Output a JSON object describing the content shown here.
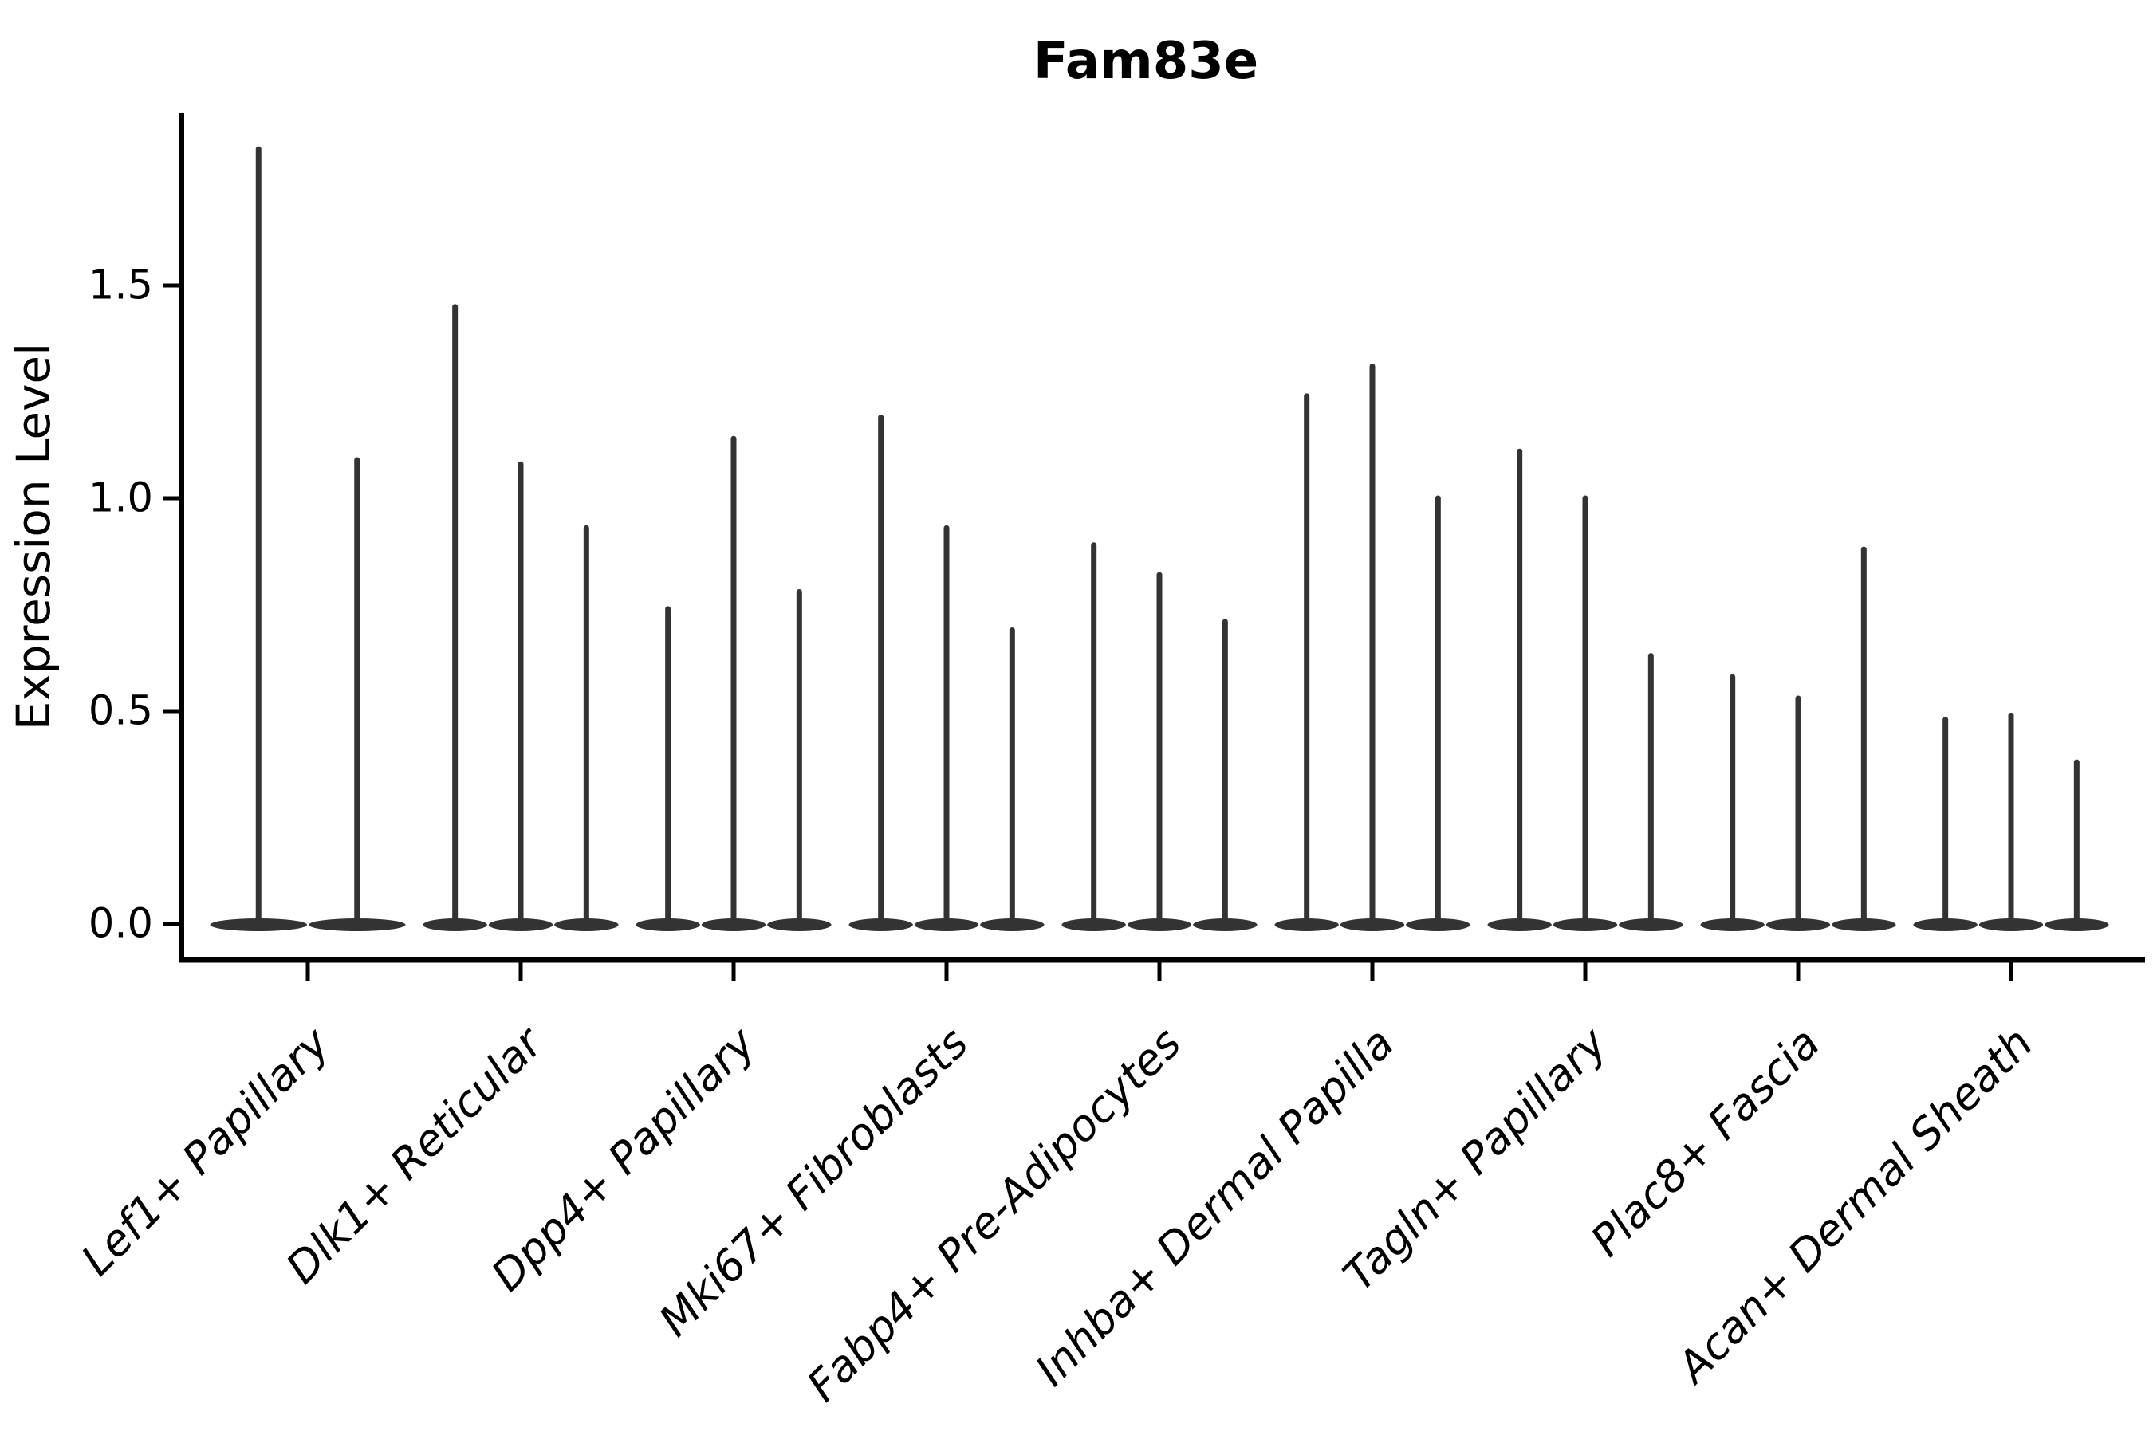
{
  "chart_data": {
    "type": "violin",
    "title": "Fam83e",
    "ylabel": "Expression Level",
    "xlabel": "",
    "legend": "none",
    "grid": false,
    "ylim": [
      -0.08,
      1.9
    ],
    "yticks": [
      {
        "value": 0.0,
        "label": "0.0"
      },
      {
        "value": 0.5,
        "label": "0.5"
      },
      {
        "value": 1.0,
        "label": "1.0"
      },
      {
        "value": 1.5,
        "label": "1.5"
      }
    ],
    "categories": [
      "Lef1+ Papillary",
      "Dlk1+ Reticular",
      "Dpp4+ Papillary",
      "Mki67+ Fibroblasts",
      "Fabp4+ Pre-Adipocytes",
      "Inhba+ Dermal Papilla",
      "Tagln+ Papillary",
      "Plac8+ Fascia",
      "Acan+ Dermal Sheath"
    ],
    "groups": [
      {
        "category": "Lef1+ Papillary",
        "spike_maxima": [
          1.82,
          1.09
        ]
      },
      {
        "category": "Dlk1+ Reticular",
        "spike_maxima": [
          1.45,
          1.08,
          0.93
        ]
      },
      {
        "category": "Dpp4+ Papillary",
        "spike_maxima": [
          0.74,
          1.14,
          0.78
        ]
      },
      {
        "category": "Mki67+ Fibroblasts",
        "spike_maxima": [
          1.19,
          0.93,
          0.69
        ]
      },
      {
        "category": "Fabp4+ Pre-Adipocytes",
        "spike_maxima": [
          0.89,
          0.82,
          0.71
        ]
      },
      {
        "category": "Inhba+ Dermal Papilla",
        "spike_maxima": [
          1.24,
          1.31,
          1.0
        ]
      },
      {
        "category": "Tagln+ Papillary",
        "spike_maxima": [
          1.11,
          1.0,
          0.63
        ]
      },
      {
        "category": "Plac8+ Fascia",
        "spike_maxima": [
          0.58,
          0.53,
          0.88
        ]
      },
      {
        "category": "Acan+ Dermal Sheath",
        "spike_maxima": [
          0.48,
          0.49,
          0.38
        ]
      }
    ],
    "description": "Violin plot of gene expression; each violin collapses to a flat base at 0 with a thin spike up to its maximum expression value",
    "x_label_rotation_deg": 45,
    "x_label_style": "italic",
    "colors": {
      "violin": "#333333",
      "axis": "#000000",
      "text": "#000000",
      "background": "#ffffff"
    }
  }
}
